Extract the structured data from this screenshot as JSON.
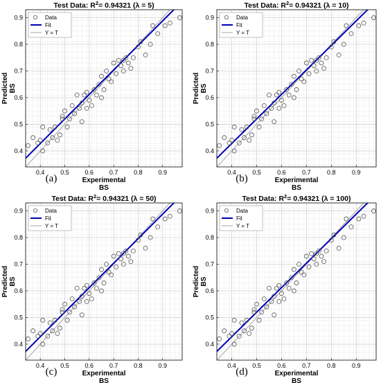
{
  "chart_data": [
    {
      "type": "scatter",
      "title": "Test Data: R²= 0.94321 (λ = 5)",
      "panel_label": "(a)",
      "xlabel": "Experimental BS",
      "ylabel": "Predicted BS",
      "xlim": [
        0.34,
        0.98
      ],
      "ylim": [
        0.34,
        0.93
      ],
      "xticks": [
        0.4,
        0.5,
        0.6,
        0.7,
        0.8,
        0.9
      ],
      "yticks": [
        0.4,
        0.5,
        0.6,
        0.7,
        0.8,
        0.9
      ],
      "grid": "on",
      "legend": {
        "placement": "top-left",
        "entries": [
          "Data",
          "Fit",
          "Y = T"
        ]
      },
      "fit": {
        "slope": 0.92,
        "intercept": 0.06
      }
    },
    {
      "type": "scatter",
      "title": "Test Data: R²= 0.94321 (λ = 10)",
      "panel_label": "(b)",
      "xlabel": "Experimental BS",
      "ylabel": "Predicted BS",
      "xlim": [
        0.34,
        0.98
      ],
      "ylim": [
        0.34,
        0.93
      ],
      "xticks": [
        0.4,
        0.5,
        0.6,
        0.7,
        0.8,
        0.9
      ],
      "yticks": [
        0.4,
        0.5,
        0.6,
        0.7,
        0.8,
        0.9
      ],
      "grid": "on",
      "legend": {
        "placement": "top-left",
        "entries": [
          "Data",
          "Fit",
          "Y = T"
        ]
      },
      "fit": {
        "slope": 0.92,
        "intercept": 0.06
      }
    },
    {
      "type": "scatter",
      "title": "Test Data: R²= 0.94321 (λ = 50)",
      "panel_label": "(c)",
      "xlabel": "Experimental BS",
      "ylabel": "Predicted BS",
      "xlim": [
        0.34,
        0.98
      ],
      "ylim": [
        0.34,
        0.93
      ],
      "xticks": [
        0.4,
        0.5,
        0.6,
        0.7,
        0.8,
        0.9
      ],
      "yticks": [
        0.4,
        0.5,
        0.6,
        0.7,
        0.8,
        0.9
      ],
      "grid": "on",
      "legend": {
        "placement": "top-left",
        "entries": [
          "Data",
          "Fit",
          "Y = T"
        ]
      },
      "fit": {
        "slope": 0.92,
        "intercept": 0.06
      }
    },
    {
      "type": "scatter",
      "title": "Test Data: R²= 0.94321 (λ = 100)",
      "panel_label": "(d)",
      "xlabel": "Experimental BS",
      "ylabel": "Predicted BS",
      "xlim": [
        0.34,
        0.98
      ],
      "ylim": [
        0.34,
        0.93
      ],
      "xticks": [
        0.4,
        0.5,
        0.6,
        0.7,
        0.8,
        0.9
      ],
      "yticks": [
        0.4,
        0.5,
        0.6,
        0.7,
        0.8,
        0.9
      ],
      "grid": "on",
      "legend": {
        "placement": "top-left",
        "entries": [
          "Data",
          "Fit",
          "Y = T"
        ]
      },
      "fit": {
        "slope": 0.92,
        "intercept": 0.06
      }
    }
  ],
  "points": [
    [
      0.35,
      0.42
    ],
    [
      0.37,
      0.45
    ],
    [
      0.39,
      0.43
    ],
    [
      0.4,
      0.44
    ],
    [
      0.41,
      0.4
    ],
    [
      0.41,
      0.49
    ],
    [
      0.43,
      0.43
    ],
    [
      0.44,
      0.48
    ],
    [
      0.45,
      0.45
    ],
    [
      0.46,
      0.49
    ],
    [
      0.47,
      0.44
    ],
    [
      0.48,
      0.46
    ],
    [
      0.49,
      0.53
    ],
    [
      0.49,
      0.52
    ],
    [
      0.5,
      0.55
    ],
    [
      0.51,
      0.49
    ],
    [
      0.52,
      0.52
    ],
    [
      0.53,
      0.57
    ],
    [
      0.54,
      0.54
    ],
    [
      0.55,
      0.61
    ],
    [
      0.56,
      0.56
    ],
    [
      0.57,
      0.51
    ],
    [
      0.57,
      0.58
    ],
    [
      0.58,
      0.61
    ],
    [
      0.59,
      0.62
    ],
    [
      0.59,
      0.56
    ],
    [
      0.6,
      0.59
    ],
    [
      0.61,
      0.57
    ],
    [
      0.62,
      0.63
    ],
    [
      0.63,
      0.61
    ],
    [
      0.64,
      0.65
    ],
    [
      0.65,
      0.6
    ],
    [
      0.65,
      0.68
    ],
    [
      0.66,
      0.63
    ],
    [
      0.67,
      0.7
    ],
    [
      0.68,
      0.67
    ],
    [
      0.69,
      0.66
    ],
    [
      0.7,
      0.73
    ],
    [
      0.71,
      0.69
    ],
    [
      0.72,
      0.74
    ],
    [
      0.73,
      0.72
    ],
    [
      0.74,
      0.74
    ],
    [
      0.74,
      0.7
    ],
    [
      0.75,
      0.75
    ],
    [
      0.76,
      0.73
    ],
    [
      0.77,
      0.71
    ],
    [
      0.78,
      0.75
    ],
    [
      0.8,
      0.79
    ],
    [
      0.81,
      0.81
    ],
    [
      0.83,
      0.76
    ],
    [
      0.85,
      0.8
    ],
    [
      0.86,
      0.87
    ],
    [
      0.88,
      0.84
    ],
    [
      0.91,
      0.87
    ],
    [
      0.93,
      0.88
    ],
    [
      0.97,
      0.9
    ]
  ]
}
